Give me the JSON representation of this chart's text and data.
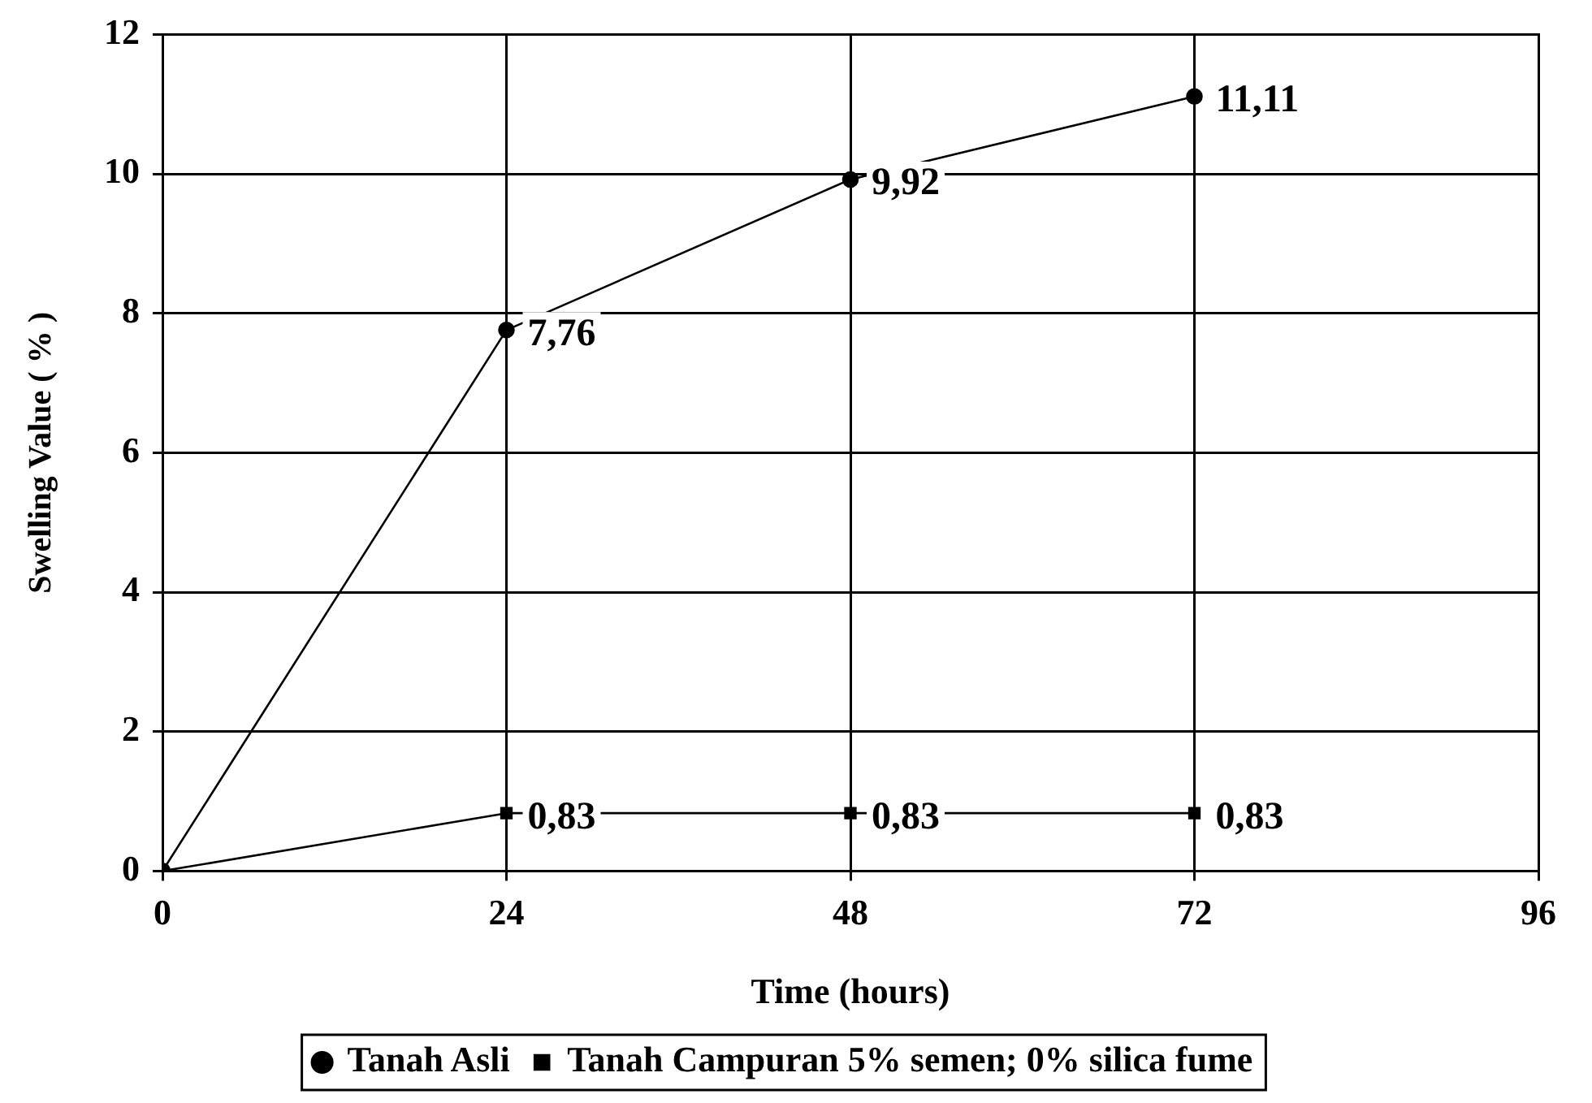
{
  "chart_data": {
    "type": "line",
    "xlabel": "Time (hours)",
    "ylabel": "Swelling Value ( % )",
    "x": [
      0,
      24,
      48,
      72
    ],
    "series": [
      {
        "name": "Tanah Asli",
        "color": "#000000",
        "marker": "circle",
        "values": [
          0,
          7.76,
          9.92,
          11.11
        ],
        "value_labels": [
          null,
          "7,76",
          "9,92",
          "11,11"
        ]
      },
      {
        "name": "Tanah Campuran 5% semen; 0% silica fume",
        "color": "#000000",
        "marker": "square",
        "values": [
          0,
          0.83,
          0.83,
          0.83
        ],
        "value_labels": [
          null,
          "0,83",
          "0,83",
          "0,83"
        ]
      }
    ],
    "xlim": [
      0,
      96
    ],
    "xticks": [
      0,
      24,
      48,
      72,
      96
    ],
    "ylim": [
      0,
      12
    ],
    "yticks": [
      0,
      2,
      4,
      6,
      8,
      10,
      12
    ],
    "grid": true,
    "legend": "bottom",
    "line_style": "solid"
  }
}
